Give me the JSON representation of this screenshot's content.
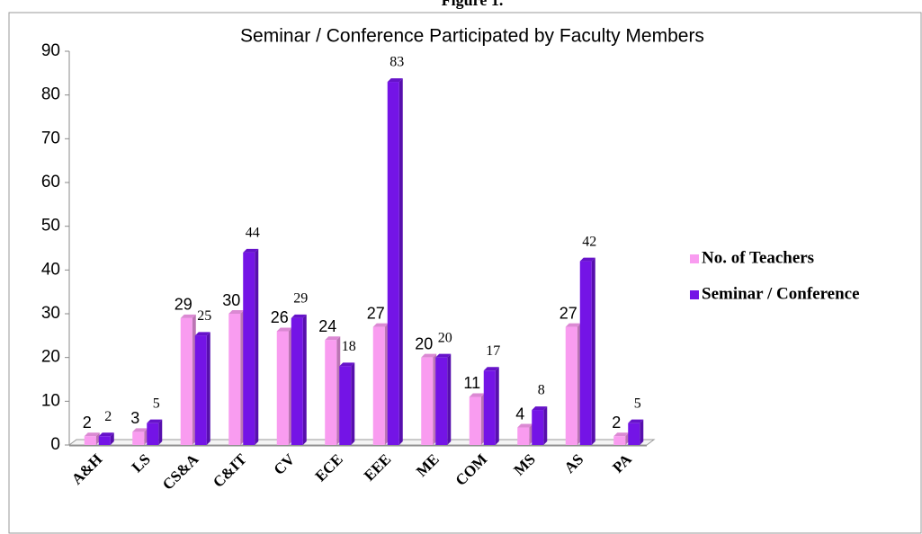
{
  "figure_label": "Figure 1.",
  "chart_data": {
    "type": "bar",
    "title": "Seminar / Conference Participated by Faculty Members",
    "categories": [
      "A&H",
      "LS",
      "CS&A",
      "C&IT",
      "CV",
      "ECE",
      "EEE",
      "ME",
      "COM",
      "MS",
      "AS",
      "PA"
    ],
    "series": [
      {
        "name": "No. of Teachers",
        "color": "#f99cf0",
        "values": [
          2,
          3,
          29,
          30,
          26,
          24,
          27,
          20,
          11,
          4,
          27,
          2
        ]
      },
      {
        "name": "Seminar / Conference",
        "color": "#7414e6",
        "values": [
          2,
          5,
          25,
          44,
          29,
          18,
          83,
          20,
          17,
          8,
          42,
          5
        ]
      }
    ],
    "ylim": [
      0,
      90
    ],
    "yticks": [
      0,
      10,
      20,
      30,
      40,
      50,
      60,
      70,
      80,
      90
    ],
    "legend": "right"
  }
}
